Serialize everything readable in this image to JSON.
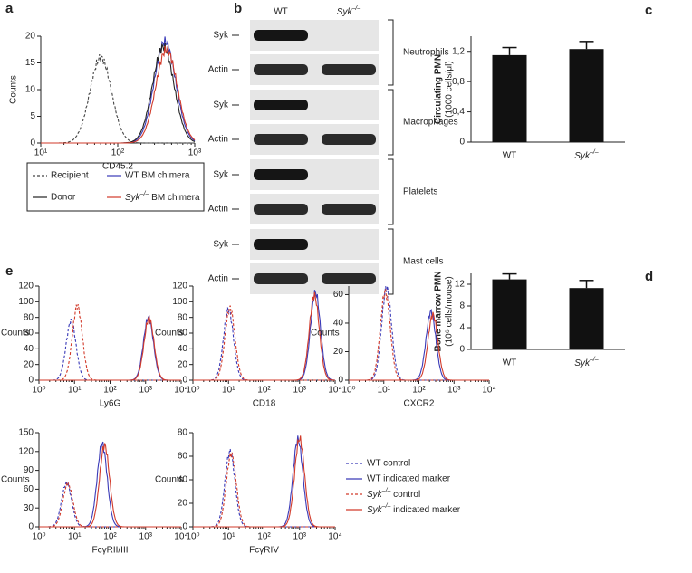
{
  "panels": {
    "a": "a",
    "b": "b",
    "c": "c",
    "d": "d",
    "e": "e"
  },
  "a": {
    "ylabel": "Counts",
    "xlabel": "CD45.2",
    "xlim": [
      10,
      1000
    ],
    "xticks": [
      {
        "value": 10,
        "label": "10¹"
      },
      {
        "value": 100,
        "label": "10²"
      },
      {
        "value": 1000,
        "label": "10³"
      }
    ],
    "ylim": [
      0,
      20
    ],
    "yticks": [
      0,
      5,
      10,
      15,
      20
    ],
    "series": [
      {
        "name": "Recipient",
        "color": "#444444",
        "dash": true,
        "peak": 60,
        "height": 16
      },
      {
        "name": "WT BM chimera",
        "color": "#3a3ab8",
        "dash": false,
        "peak": 410,
        "height": 19
      },
      {
        "name": "Donor",
        "color": "#222222",
        "dash": false,
        "peak": 390,
        "height": 18
      },
      {
        "name": "Syk–/– BM chimera",
        "color": "#d23a2a",
        "dash": false,
        "peak": 430,
        "height": 17.5
      }
    ]
  },
  "b": {
    "columns": [
      "WT",
      "Syk–/–"
    ],
    "groups": [
      {
        "name": "Neutrophils",
        "rows": [
          "Syk",
          "Actin"
        ]
      },
      {
        "name": "Macrophages",
        "rows": [
          "Syk",
          "Actin"
        ]
      },
      {
        "name": "Platelets",
        "rows": [
          "Syk",
          "Actin"
        ]
      },
      {
        "name": "Mast cells",
        "rows": [
          "Syk",
          "Actin"
        ]
      }
    ]
  },
  "chart_data": [
    {
      "type": "bar",
      "ylabel": [
        "Circulating PMN",
        "(1000 cells/μl)"
      ],
      "categories": [
        "WT",
        "Syk–/–"
      ],
      "values": [
        1.15,
        1.23
      ],
      "errors": [
        0.1,
        0.1
      ],
      "color": "#111111",
      "ylim": [
        0,
        1.4
      ],
      "yticks": [
        0,
        {
          "value": 0.4,
          "label": "0,4"
        },
        {
          "value": 0.8,
          "label": "0,8"
        },
        {
          "value": 1.2,
          "label": "1,2"
        }
      ]
    },
    {
      "type": "bar",
      "ylabel": [
        "Bone marrow PMN",
        "(10⁶ cells/mouse)"
      ],
      "categories": [
        "WT",
        "Syk–/–"
      ],
      "values": [
        12.9,
        11.3
      ],
      "errors": [
        1.0,
        1.4
      ],
      "color": "#111111",
      "ylim": [
        0,
        14
      ],
      "yticks": [
        0,
        4,
        8,
        12
      ]
    }
  ],
  "e": {
    "ylabel": "Counts",
    "xlim": [
      1,
      10000
    ],
    "xticks": [
      {
        "value": 1,
        "label": "10⁰"
      },
      {
        "value": 10,
        "label": "10¹"
      },
      {
        "value": 100,
        "label": "10²"
      },
      {
        "value": 1000,
        "label": "10³"
      },
      {
        "value": 10000,
        "label": "10⁴"
      }
    ],
    "legend": [
      {
        "name": "WT control",
        "color": "#3a3ab8",
        "dash": true
      },
      {
        "name": "WT indicated marker",
        "color": "#3a3ab8",
        "dash": false
      },
      {
        "name": "Syk–/– control",
        "color": "#d23a2a",
        "dash": true
      },
      {
        "name": "Syk–/– indicated marker",
        "color": "#d23a2a",
        "dash": false
      }
    ],
    "panels": [
      {
        "xlabel": "Ly6G",
        "ylim": [
          0,
          120
        ],
        "yticks": [
          0,
          20,
          40,
          60,
          80,
          100,
          120
        ],
        "curves": [
          {
            "peak": 8,
            "height": 75
          },
          {
            "peak": 1200,
            "height": 80
          },
          {
            "peak": 12,
            "height": 95
          },
          {
            "peak": 1250,
            "height": 79
          }
        ]
      },
      {
        "xlabel": "CD18",
        "ylim": [
          0,
          120
        ],
        "yticks": [
          0,
          20,
          40,
          60,
          80,
          100,
          120
        ],
        "curves": [
          {
            "peak": 10,
            "height": 90
          },
          {
            "peak": 2800,
            "height": 112
          },
          {
            "peak": 11,
            "height": 92
          },
          {
            "peak": 2600,
            "height": 108
          }
        ]
      },
      {
        "xlabel": "CXCR2",
        "ylim": [
          0,
          66
        ],
        "yticks": [
          0,
          20,
          40,
          60
        ],
        "curves": [
          {
            "peak": 12,
            "height": 65
          },
          {
            "peak": 220,
            "height": 48
          },
          {
            "peak": 11,
            "height": 62
          },
          {
            "peak": 250,
            "height": 46
          }
        ]
      },
      {
        "xlabel": "FcγRII/III",
        "ylim": [
          0,
          150
        ],
        "yticks": [
          0,
          30,
          60,
          90,
          120,
          150
        ],
        "curves": [
          {
            "peak": 6,
            "height": 70
          },
          {
            "peak": 60,
            "height": 132
          },
          {
            "peak": 6.5,
            "height": 68
          },
          {
            "peak": 70,
            "height": 130
          }
        ]
      },
      {
        "xlabel": "FcγRIV",
        "ylim": [
          0,
          80
        ],
        "yticks": [
          0,
          20,
          40,
          60,
          80
        ],
        "curves": [
          {
            "peak": 11,
            "height": 64
          },
          {
            "peak": 900,
            "height": 74
          },
          {
            "peak": 12,
            "height": 62
          },
          {
            "peak": 1000,
            "height": 75
          }
        ]
      }
    ]
  }
}
